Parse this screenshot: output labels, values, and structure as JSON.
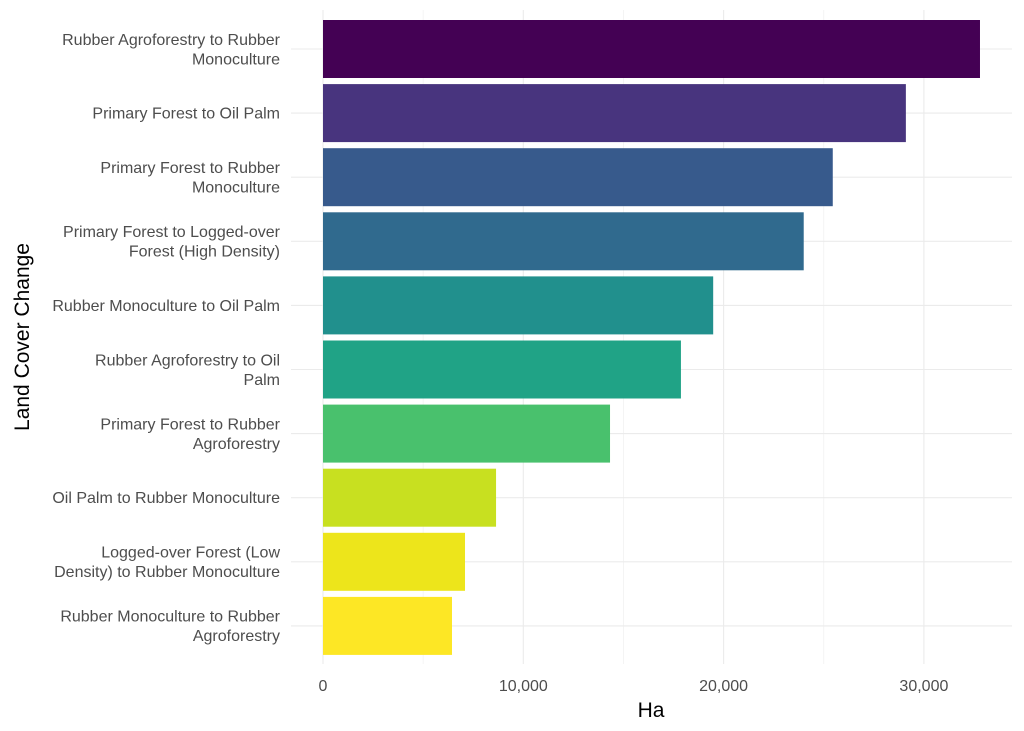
{
  "chart_data": {
    "type": "bar",
    "orientation": "horizontal",
    "title": "",
    "xlabel": "Ha",
    "ylabel": "Land Cover Change",
    "xlim": [
      0,
      34000
    ],
    "x_ticks": [
      0,
      10000,
      20000,
      30000
    ],
    "x_tick_labels": [
      "0",
      "10,000",
      "20,000",
      "30,000"
    ],
    "grid": true,
    "legend": "none",
    "categories": [
      [
        "Rubber Agroforestry to Rubber",
        "Monoculture"
      ],
      [
        "Primary Forest to Oil Palm"
      ],
      [
        "Primary Forest to Rubber",
        "Monoculture"
      ],
      [
        "Primary Forest to Logged-over",
        "Forest (High Density)"
      ],
      [
        "Rubber Monoculture to Oil Palm"
      ],
      [
        "Rubber Agroforestry to Oil",
        "Palm"
      ],
      [
        "Primary Forest to Rubber",
        "Agroforestry"
      ],
      [
        "Oil Palm to Rubber Monoculture"
      ],
      [
        "Logged-over Forest (Low",
        "Density) to Rubber Monoculture"
      ],
      [
        "Rubber Monoculture to Rubber",
        "Agroforestry"
      ]
    ],
    "values": [
      32800,
      29100,
      25450,
      24000,
      19480,
      17870,
      14330,
      8640,
      7090,
      6440
    ],
    "colors": [
      "#440154",
      "#48347E",
      "#375A8C",
      "#306A8E",
      "#21908D",
      "#20A386",
      "#49C16D",
      "#C8E020",
      "#EDE51B",
      "#FDE725"
    ]
  }
}
